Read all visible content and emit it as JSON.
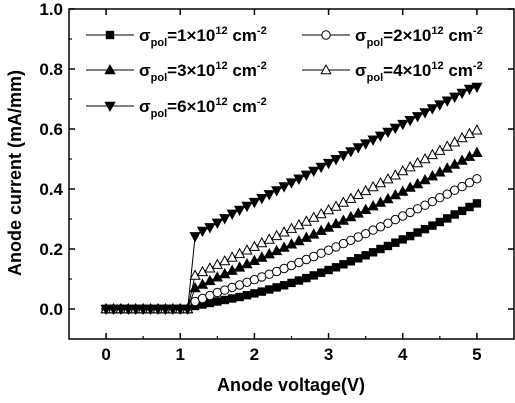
{
  "chart_data": {
    "type": "line",
    "xlabel": "Anode voltage(V)",
    "ylabel": "Anode current (mA/mm)",
    "xlim": [
      -0.5,
      5.5
    ],
    "ylim": [
      -0.1,
      1.0
    ],
    "xticks": [
      0,
      1,
      2,
      3,
      4,
      5
    ],
    "yticks": [
      0.0,
      0.2,
      0.4,
      0.6,
      0.8,
      1.0
    ],
    "xtick_labels": [
      "0",
      "1",
      "2",
      "3",
      "4",
      "5"
    ],
    "ytick_labels": [
      "0.0",
      "0.2",
      "0.4",
      "0.6",
      "0.8",
      "1.0"
    ],
    "grid": false,
    "legend_position": "top",
    "x_step": 0.1,
    "series": [
      {
        "label_base": "σ",
        "label_sub": "pol",
        "label_value": "=1×10",
        "label_exp": "12",
        "label_unit": " cm",
        "label_unit_exp": "-2",
        "marker": "square-filled",
        "values": [
          0,
          0,
          0,
          0,
          0,
          0,
          0,
          0,
          0,
          0,
          0,
          0,
          0.01,
          0.015,
          0.02,
          0.025,
          0.03,
          0.035,
          0.04,
          0.046,
          0.052,
          0.058,
          0.065,
          0.072,
          0.079,
          0.087,
          0.095,
          0.103,
          0.112,
          0.121,
          0.13,
          0.139,
          0.149,
          0.159,
          0.169,
          0.179,
          0.189,
          0.2,
          0.21,
          0.221,
          0.232,
          0.243,
          0.255,
          0.266,
          0.278,
          0.29,
          0.302,
          0.315,
          0.327,
          0.34,
          0.352
        ]
      },
      {
        "label_base": "σ",
        "label_sub": "pol",
        "label_value": "=2×10",
        "label_exp": "12",
        "label_unit": " cm",
        "label_unit_exp": "-2",
        "marker": "circle-open",
        "values": [
          0,
          0,
          0,
          0,
          0,
          0,
          0,
          0,
          0,
          0,
          0,
          0,
          0.025,
          0.035,
          0.045,
          0.055,
          0.063,
          0.072,
          0.08,
          0.089,
          0.098,
          0.107,
          0.116,
          0.125,
          0.135,
          0.145,
          0.155,
          0.165,
          0.175,
          0.186,
          0.196,
          0.207,
          0.218,
          0.229,
          0.24,
          0.251,
          0.263,
          0.274,
          0.286,
          0.298,
          0.31,
          0.322,
          0.334,
          0.346,
          0.358,
          0.371,
          0.383,
          0.396,
          0.408,
          0.421,
          0.434
        ]
      },
      {
        "label_base": "σ",
        "label_sub": "pol",
        "label_value": "=3×10",
        "label_exp": "12",
        "label_unit": " cm",
        "label_unit_exp": "-2",
        "marker": "triangle-up-filled",
        "values": [
          0,
          0,
          0,
          0,
          0,
          0,
          0,
          0,
          0,
          0,
          0,
          0,
          0.07,
          0.082,
          0.094,
          0.106,
          0.117,
          0.128,
          0.139,
          0.15,
          0.161,
          0.172,
          0.183,
          0.194,
          0.205,
          0.216,
          0.227,
          0.238,
          0.249,
          0.261,
          0.272,
          0.284,
          0.295,
          0.307,
          0.319,
          0.331,
          0.343,
          0.355,
          0.367,
          0.38,
          0.392,
          0.405,
          0.417,
          0.43,
          0.443,
          0.456,
          0.469,
          0.482,
          0.495,
          0.508,
          0.521
        ]
      },
      {
        "label_base": "σ",
        "label_sub": "pol",
        "label_value": "=4×10",
        "label_exp": "12",
        "label_unit": " cm",
        "label_unit_exp": "-2",
        "marker": "triangle-up-open",
        "values": [
          0,
          0,
          0,
          0,
          0,
          0,
          0,
          0,
          0,
          0,
          0,
          0,
          0.112,
          0.124,
          0.136,
          0.148,
          0.16,
          0.172,
          0.184,
          0.196,
          0.208,
          0.22,
          0.232,
          0.244,
          0.256,
          0.268,
          0.28,
          0.292,
          0.305,
          0.317,
          0.33,
          0.342,
          0.355,
          0.368,
          0.381,
          0.394,
          0.407,
          0.42,
          0.433,
          0.446,
          0.46,
          0.473,
          0.487,
          0.5,
          0.514,
          0.528,
          0.542,
          0.556,
          0.57,
          0.584,
          0.596
        ]
      },
      {
        "label_base": "σ",
        "label_sub": "pol",
        "label_value": "=6×10",
        "label_exp": "12",
        "label_unit": " cm",
        "label_unit_exp": "-2",
        "marker": "triangle-down-filled",
        "values": [
          0,
          0,
          0,
          0,
          0,
          0,
          0,
          0,
          0,
          0,
          0,
          0,
          0.242,
          0.26,
          0.272,
          0.287,
          0.302,
          0.317,
          0.33,
          0.343,
          0.356,
          0.369,
          0.382,
          0.395,
          0.408,
          0.421,
          0.434,
          0.447,
          0.46,
          0.473,
          0.486,
          0.499,
          0.512,
          0.525,
          0.538,
          0.551,
          0.564,
          0.577,
          0.59,
          0.603,
          0.616,
          0.629,
          0.642,
          0.655,
          0.668,
          0.681,
          0.694,
          0.707,
          0.72,
          0.733,
          0.74
        ]
      }
    ]
  }
}
